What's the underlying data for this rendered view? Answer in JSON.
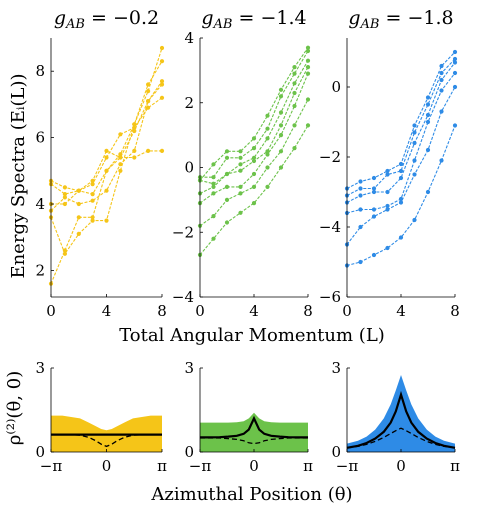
{
  "figure": {
    "top_ylabel": "Energy Spectra (Eᵢ(L))",
    "top_xlabel": "Total Angular Momentum (L)",
    "bottom_ylabel": "ρ⁽²⁾(θ, 0)",
    "bottom_xlabel": "Azimuthal Position (θ)"
  },
  "chart_data": [
    {
      "type": "line",
      "title": "g_AB = −0.2",
      "title_main": "g",
      "title_sub": "AB",
      "title_rest": " = −0.2",
      "color": "#F5C518",
      "x": [
        0,
        1,
        2,
        3,
        4,
        5,
        6,
        7,
        8
      ],
      "xticks": [
        0,
        4,
        8
      ],
      "xtick_labels": [
        "0",
        "4",
        "8"
      ],
      "yticks": [
        2,
        4,
        6,
        8
      ],
      "ytick_labels": [
        "2",
        "4",
        "6",
        "8"
      ],
      "ylim": [
        1.2,
        9.0
      ],
      "series": [
        {
          "values": [
            1.6,
            2.6,
            3.6,
            3.6,
            5.0,
            5.5,
            6.4,
            7.4,
            8.7
          ]
        },
        {
          "values": [
            3.6,
            2.5,
            3.1,
            3.5,
            3.5,
            5.0,
            6.4,
            7.6,
            8.3
          ]
        },
        {
          "values": [
            3.8,
            4.2,
            4.0,
            4.1,
            4.4,
            5.2,
            5.6,
            7.1,
            7.7
          ]
        },
        {
          "values": [
            4.0,
            4.0,
            4.4,
            4.3,
            5.0,
            5.4,
            6.2,
            7.1,
            7.6
          ]
        },
        {
          "values": [
            4.6,
            4.3,
            4.4,
            4.6,
            5.4,
            6.1,
            6.3,
            6.9,
            7.2
          ]
        },
        {
          "values": [
            4.7,
            4.5,
            4.4,
            4.7,
            5.6,
            5.4,
            5.4,
            5.6,
            5.6
          ]
        }
      ]
    },
    {
      "type": "line",
      "title": "g_AB = −1.4",
      "title_main": "g",
      "title_sub": "AB",
      "title_rest": " = −1.4",
      "color": "#6CC24A",
      "x": [
        0,
        1,
        2,
        3,
        4,
        5,
        6,
        7,
        8
      ],
      "xticks": [
        0,
        4,
        8
      ],
      "xtick_labels": [
        "0",
        "4",
        "8"
      ],
      "yticks": [
        -4,
        -2,
        0,
        2,
        4
      ],
      "ytick_labels": [
        "−4",
        "−2",
        "0",
        "2",
        "4"
      ],
      "ylim": [
        -4,
        4
      ],
      "series": [
        {
          "values": [
            -2.7,
            -2.2,
            -1.7,
            -1.4,
            -1.1,
            -0.6,
            0.0,
            0.6,
            1.3
          ]
        },
        {
          "values": [
            -1.8,
            -1.5,
            -1.0,
            -0.8,
            -0.6,
            0.0,
            0.5,
            1.3,
            2.1
          ]
        },
        {
          "values": [
            -1.1,
            -0.8,
            -0.6,
            -0.6,
            -0.2,
            0.4,
            1.0,
            1.9,
            2.9
          ]
        },
        {
          "values": [
            -0.8,
            -0.6,
            -0.2,
            -0.1,
            0.2,
            0.5,
            1.3,
            2.3,
            3.1
          ]
        },
        {
          "values": [
            -0.4,
            -0.5,
            -0.2,
            0.1,
            0.3,
            0.9,
            1.7,
            2.6,
            3.3
          ]
        },
        {
          "values": [
            -0.3,
            -0.3,
            0.3,
            0.3,
            0.6,
            1.2,
            2.2,
            2.9,
            3.6
          ]
        },
        {
          "values": [
            -0.4,
            0.1,
            0.5,
            0.5,
            0.9,
            1.6,
            2.4,
            3.1,
            3.7
          ]
        }
      ]
    },
    {
      "type": "line",
      "title": "g_AB = −1.8",
      "title_main": "g",
      "title_sub": "AB",
      "title_rest": " = −1.8",
      "color": "#2E8BE6",
      "x": [
        0,
        1,
        2,
        3,
        4,
        5,
        6,
        7,
        8
      ],
      "xticks": [
        0,
        4,
        8
      ],
      "xtick_labels": [
        "0",
        "4",
        "8"
      ],
      "yticks": [
        -6,
        -4,
        -2,
        0
      ],
      "ytick_labels": [
        "−6",
        "−4",
        "−2",
        "0"
      ],
      "ylim": [
        -6,
        1.4
      ],
      "series": [
        {
          "values": [
            -5.1,
            -5.0,
            -4.8,
            -4.6,
            -4.3,
            -3.8,
            -3.0,
            -2.1,
            -1.1
          ]
        },
        {
          "values": [
            -4.5,
            -4.0,
            -3.7,
            -3.5,
            -3.3,
            -2.5,
            -1.8,
            -0.7,
            0.0
          ]
        },
        {
          "values": [
            -3.6,
            -3.5,
            -3.5,
            -3.4,
            -3.2,
            -2.1,
            -1.0,
            -0.1,
            0.4
          ]
        },
        {
          "values": [
            -3.3,
            -3.1,
            -3.0,
            -3.0,
            -2.6,
            -1.6,
            -0.8,
            0.2,
            0.7
          ]
        },
        {
          "values": [
            -3.1,
            -2.9,
            -2.9,
            -2.5,
            -2.4,
            -1.3,
            -0.5,
            0.4,
            0.8
          ]
        },
        {
          "values": [
            -2.9,
            -2.7,
            -2.6,
            -2.4,
            -2.2,
            -1.1,
            -0.3,
            0.6,
            1.0
          ]
        }
      ]
    },
    {
      "type": "area",
      "color": "#F5C518",
      "x": [
        -3.1416,
        -2.5,
        -2.0,
        -1.5,
        -1.0,
        -0.6,
        -0.3,
        0.0,
        0.3,
        0.6,
        1.0,
        1.5,
        2.0,
        2.5,
        3.1416
      ],
      "xticks": [
        -3.1416,
        0,
        3.1416
      ],
      "xtick_labels": [
        "−π",
        "0",
        "π"
      ],
      "yticks": [
        0,
        3
      ],
      "ytick_labels": [
        "0",
        "3"
      ],
      "ylim": [
        0,
        3
      ],
      "band_upper": [
        1.3,
        1.3,
        1.25,
        1.2,
        1.05,
        0.92,
        0.82,
        0.78,
        0.82,
        0.92,
        1.05,
        1.2,
        1.25,
        1.3,
        1.3
      ],
      "series": [
        {
          "name": "solid",
          "values": [
            0.62,
            0.62,
            0.62,
            0.62,
            0.62,
            0.62,
            0.62,
            0.62,
            0.62,
            0.62,
            0.62,
            0.62,
            0.62,
            0.62,
            0.62
          ]
        },
        {
          "name": "dashed",
          "values": [
            0.62,
            0.62,
            0.62,
            0.6,
            0.52,
            0.4,
            0.28,
            0.2,
            0.28,
            0.4,
            0.52,
            0.6,
            0.62,
            0.62,
            0.62
          ]
        }
      ]
    },
    {
      "type": "area",
      "color": "#6CC24A",
      "x": [
        -3.1416,
        -2.5,
        -2.0,
        -1.5,
        -1.0,
        -0.6,
        -0.3,
        0.0,
        0.3,
        0.6,
        1.0,
        1.5,
        2.0,
        2.5,
        3.1416
      ],
      "xticks": [
        -3.1416,
        0,
        3.1416
      ],
      "xtick_labels": [
        "−π",
        "0",
        "π"
      ],
      "yticks": [
        0,
        3
      ],
      "ytick_labels": [
        "0",
        "3"
      ],
      "ylim": [
        0,
        3
      ],
      "band_upper": [
        1.05,
        1.05,
        1.05,
        1.05,
        1.06,
        1.1,
        1.2,
        1.4,
        1.2,
        1.1,
        1.06,
        1.05,
        1.05,
        1.05,
        1.05
      ],
      "series": [
        {
          "name": "solid",
          "values": [
            0.52,
            0.52,
            0.53,
            0.55,
            0.58,
            0.65,
            0.8,
            1.2,
            0.8,
            0.65,
            0.58,
            0.55,
            0.53,
            0.52,
            0.52
          ]
        },
        {
          "name": "dashed",
          "values": [
            0.5,
            0.5,
            0.5,
            0.48,
            0.45,
            0.4,
            0.33,
            0.3,
            0.33,
            0.4,
            0.45,
            0.48,
            0.5,
            0.5,
            0.5
          ]
        }
      ]
    },
    {
      "type": "area",
      "color": "#2E8BE6",
      "x": [
        -3.1416,
        -2.5,
        -2.0,
        -1.5,
        -1.0,
        -0.6,
        -0.3,
        0.0,
        0.3,
        0.6,
        1.0,
        1.5,
        2.0,
        2.5,
        3.1416
      ],
      "xticks": [
        -3.1416,
        0,
        3.1416
      ],
      "xtick_labels": [
        "−π",
        "0",
        "π"
      ],
      "yticks": [
        0,
        3
      ],
      "ytick_labels": [
        "0",
        "3"
      ],
      "ylim": [
        0,
        3
      ],
      "band_upper": [
        0.3,
        0.4,
        0.55,
        0.8,
        1.2,
        1.7,
        2.2,
        2.75,
        2.2,
        1.7,
        1.2,
        0.8,
        0.55,
        0.4,
        0.3
      ],
      "series": [
        {
          "name": "solid",
          "values": [
            0.15,
            0.22,
            0.32,
            0.48,
            0.72,
            1.05,
            1.45,
            2.05,
            1.45,
            1.05,
            0.72,
            0.48,
            0.32,
            0.22,
            0.15
          ]
        },
        {
          "name": "dashed",
          "values": [
            0.15,
            0.2,
            0.27,
            0.38,
            0.52,
            0.66,
            0.76,
            0.85,
            0.76,
            0.66,
            0.52,
            0.38,
            0.27,
            0.2,
            0.15
          ]
        }
      ]
    }
  ]
}
